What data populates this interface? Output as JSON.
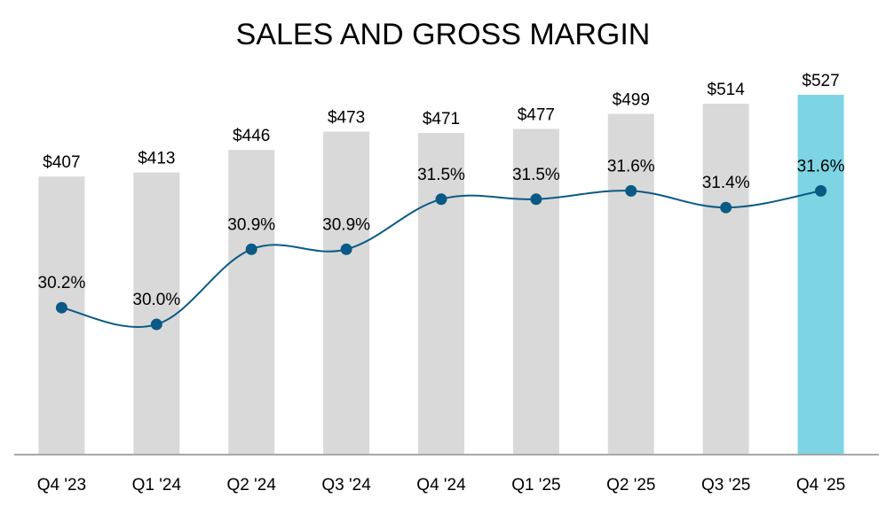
{
  "chart_data": {
    "type": "bar",
    "title": "SALES AND GROSS MARGIN",
    "xlabel": "",
    "ylabel": "",
    "grid": false,
    "legend": "none",
    "categories": [
      "Q4 '23",
      "Q1 '24",
      "Q2 '24",
      "Q3 '24",
      "Q4 '24",
      "Q1 '25",
      "Q2 '25",
      "Q3 '25",
      "Q4 '25"
    ],
    "series": [
      {
        "type": "bar",
        "values": [
          407,
          413,
          446,
          473,
          471,
          477,
          499,
          514,
          527
        ],
        "labels": [
          "$407",
          "$413",
          "$446",
          "$473",
          "$471",
          "$477",
          "$499",
          "$514",
          "$527"
        ],
        "color": "#d9d9d9",
        "highlight_color": "#7dd4e3",
        "highlight_index": 8
      },
      {
        "type": "line",
        "values": [
          30.2,
          30.0,
          30.9,
          30.9,
          31.5,
          31.5,
          31.6,
          31.4,
          31.6
        ],
        "labels": [
          "30.2%",
          "30.0%",
          "30.9%",
          "30.9%",
          "31.5%",
          "31.5%",
          "31.6%",
          "31.4%",
          "31.6%"
        ],
        "color": "#0a5a85"
      }
    ],
    "ylim": [
      0,
      527
    ],
    "y2lim": [
      28.45,
      33.25
    ]
  }
}
